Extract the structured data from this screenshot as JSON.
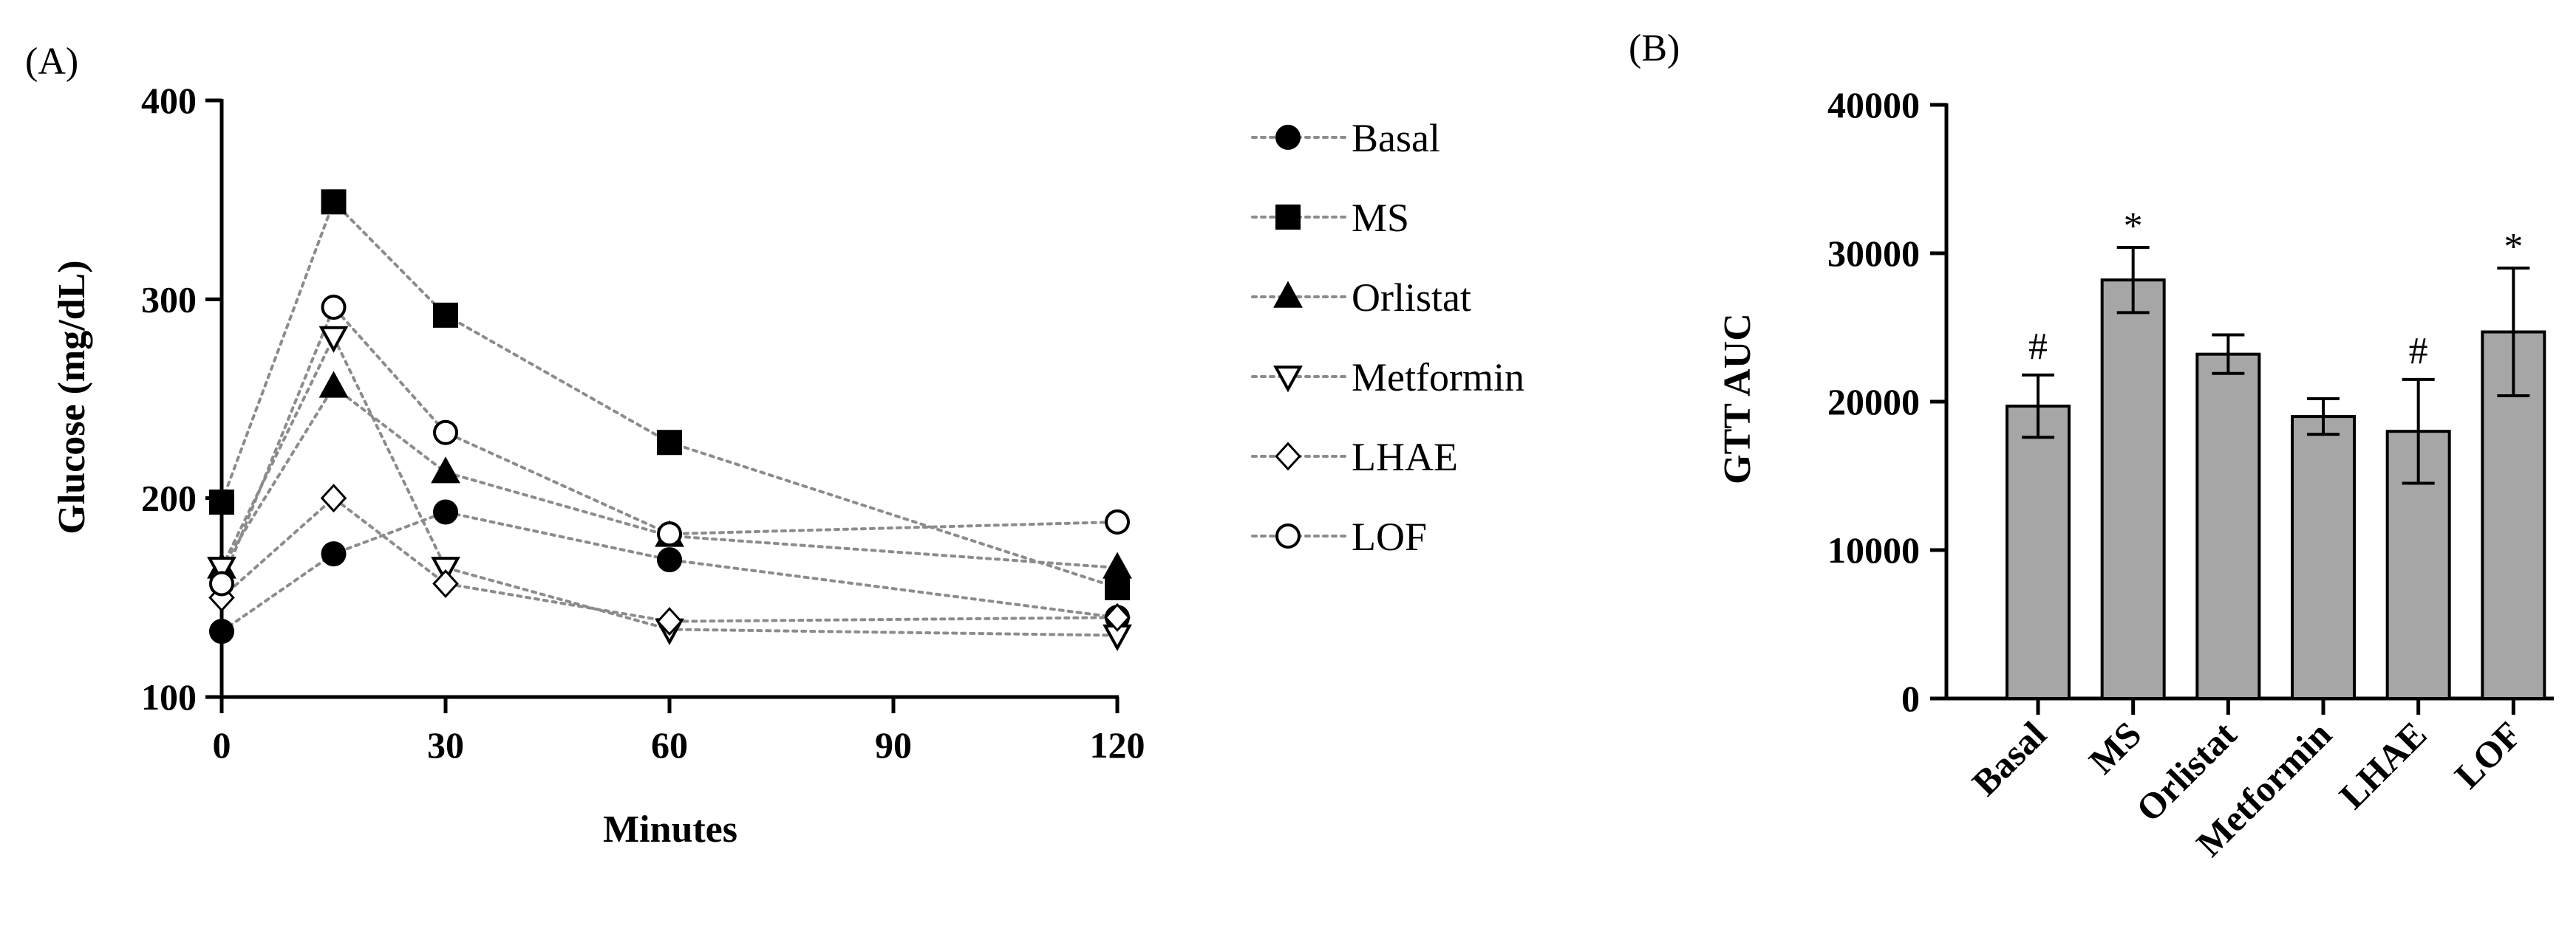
{
  "chart_data": [
    {
      "type": "line",
      "panel_label": "(A)",
      "xlabel": "Minutes",
      "ylabel": "Glucose (mg/dL)",
      "xlim": [
        0,
        120
      ],
      "ylim": [
        100,
        400
      ],
      "xticks": [
        "0",
        "30",
        "60",
        "90",
        "120"
      ],
      "yticks": [
        "100",
        "200",
        "300",
        "400"
      ],
      "x": [
        0,
        15,
        30,
        60,
        120
      ],
      "line_style": "dotted",
      "legend_position": "right",
      "series": [
        {
          "name": "Basal",
          "marker": "circle-filled",
          "values": [
            133,
            172,
            193,
            169,
            140
          ]
        },
        {
          "name": "MS",
          "marker": "square-filled",
          "values": [
            198,
            349,
            292,
            228,
            155
          ]
        },
        {
          "name": "Orlistat",
          "marker": "triangle-up-filled",
          "values": [
            165,
            256,
            213,
            181,
            165
          ]
        },
        {
          "name": "Metformin",
          "marker": "triangle-down-open",
          "values": [
            165,
            281,
            165,
            134,
            131
          ]
        },
        {
          "name": "LHAE",
          "marker": "diamond-open",
          "values": [
            150,
            200,
            157,
            138,
            140
          ]
        },
        {
          "name": "LOF",
          "marker": "circle-open",
          "values": [
            157,
            296,
            233,
            182,
            188
          ]
        }
      ]
    },
    {
      "type": "bar",
      "panel_label": "(B)",
      "ylabel": "GTT AUC",
      "ylim": [
        0,
        40000
      ],
      "yticks": [
        "0",
        "10000",
        "20000",
        "30000",
        "40000"
      ],
      "categories": [
        "Basal",
        "MS",
        "Orlistat",
        "Metformin",
        "LHAE",
        "LOF"
      ],
      "values": [
        19700,
        28200,
        23200,
        19000,
        18000,
        24700
      ],
      "error": [
        2100,
        2200,
        1300,
        1200,
        3500,
        4300
      ],
      "annotations": [
        "#",
        "*",
        "",
        "",
        "#",
        "*"
      ],
      "bar_color": "#a6a6a6"
    }
  ]
}
